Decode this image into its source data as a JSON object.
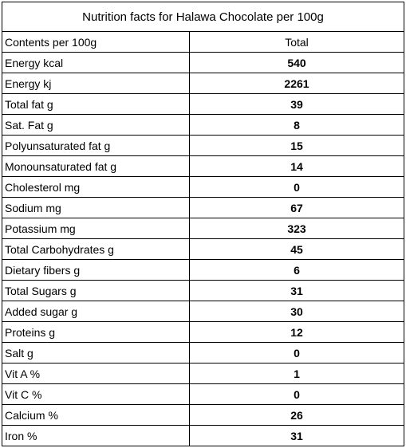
{
  "title": "Nutrition facts for Halawa Chocolate per 100g",
  "table": {
    "header": [
      "Contents per 100g",
      "Total"
    ],
    "rows": [
      [
        "Energy kcal",
        540
      ],
      [
        "Energy kj",
        2261
      ],
      [
        "Total fat g",
        39
      ],
      [
        "Sat. Fat g",
        8
      ],
      [
        "Polyunsaturated fat g",
        15
      ],
      [
        "Monounsaturated fat g",
        14
      ],
      [
        "Cholesterol mg",
        0
      ],
      [
        "Sodium mg",
        67
      ],
      [
        "Potassium mg",
        323
      ],
      [
        "Total Carbohydrates g",
        45
      ],
      [
        "Dietary fibers g",
        6
      ],
      [
        "Total Sugars g",
        31
      ],
      [
        "Added sugar g",
        30
      ],
      [
        "Proteins g",
        12
      ],
      [
        "Salt g",
        0
      ],
      [
        "Vit A %",
        1
      ],
      [
        "Vit C %",
        0
      ],
      [
        "Calcium %",
        26
      ],
      [
        "Iron %",
        31
      ]
    ]
  }
}
